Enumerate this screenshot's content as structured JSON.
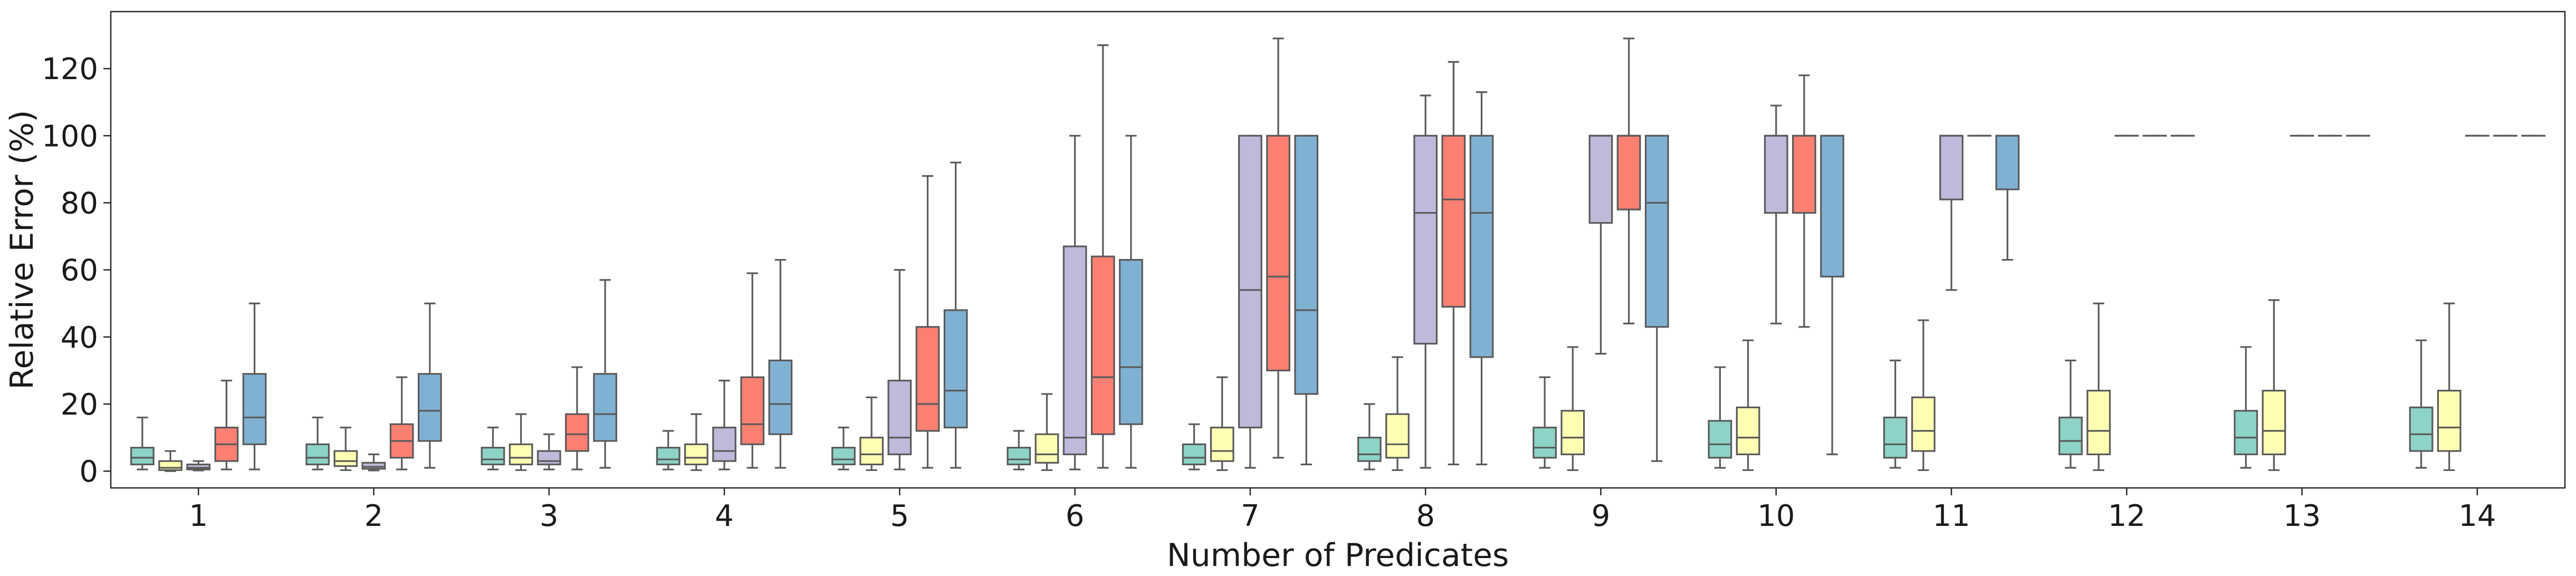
{
  "chart_data": {
    "type": "boxplot",
    "title": "",
    "xlabel": "Number of Predicates",
    "ylabel": "Relative Error (%)",
    "ylim": [
      -5,
      137
    ],
    "yticks": [
      0,
      20,
      40,
      60,
      80,
      100,
      120
    ],
    "grid": false,
    "legend": "none",
    "categories": [
      "1",
      "2",
      "3",
      "4",
      "5",
      "6",
      "7",
      "8",
      "9",
      "10",
      "11",
      "12",
      "13",
      "14"
    ],
    "colors": [
      "#8dd3c7",
      "#ffffb3",
      "#bebada",
      "#fb8072",
      "#80b1d3"
    ],
    "series": [
      {
        "color": "#8dd3c7",
        "boxes": [
          {
            "cat": "1",
            "whislo": 0.5,
            "q1": 2,
            "med": 4,
            "q3": 7,
            "whishi": 16
          },
          {
            "cat": "2",
            "whislo": 0.5,
            "q1": 2,
            "med": 4,
            "q3": 8,
            "whishi": 16
          },
          {
            "cat": "3",
            "whislo": 0.5,
            "q1": 2,
            "med": 3.5,
            "q3": 7,
            "whishi": 13
          },
          {
            "cat": "4",
            "whislo": 0.5,
            "q1": 2,
            "med": 3.5,
            "q3": 7,
            "whishi": 12
          },
          {
            "cat": "5",
            "whislo": 0.5,
            "q1": 2,
            "med": 3.5,
            "q3": 7,
            "whishi": 13
          },
          {
            "cat": "6",
            "whislo": 0.5,
            "q1": 2,
            "med": 3.5,
            "q3": 7,
            "whishi": 12
          },
          {
            "cat": "7",
            "whislo": 0.5,
            "q1": 2,
            "med": 4,
            "q3": 8,
            "whishi": 14
          },
          {
            "cat": "8",
            "whislo": 0.5,
            "q1": 3,
            "med": 5,
            "q3": 10,
            "whishi": 20
          },
          {
            "cat": "9",
            "whislo": 1,
            "q1": 4,
            "med": 7,
            "q3": 13,
            "whishi": 28
          },
          {
            "cat": "10",
            "whislo": 1,
            "q1": 4,
            "med": 8,
            "q3": 15,
            "whishi": 31
          },
          {
            "cat": "11",
            "whislo": 1,
            "q1": 4,
            "med": 8,
            "q3": 16,
            "whishi": 33
          },
          {
            "cat": "12",
            "whislo": 1,
            "q1": 5,
            "med": 9,
            "q3": 16,
            "whishi": 33
          },
          {
            "cat": "13",
            "whislo": 1,
            "q1": 5,
            "med": 10,
            "q3": 18,
            "whishi": 37
          },
          {
            "cat": "14",
            "whislo": 1,
            "q1": 6,
            "med": 11,
            "q3": 19,
            "whishi": 39
          }
        ]
      },
      {
        "color": "#ffffb3",
        "boxes": [
          {
            "cat": "1",
            "whislo": 0,
            "q1": 0.3,
            "med": 1,
            "q3": 3,
            "whishi": 6
          },
          {
            "cat": "2",
            "whislo": 0.3,
            "q1": 1.5,
            "med": 3,
            "q3": 6,
            "whishi": 13
          },
          {
            "cat": "3",
            "whislo": 0.3,
            "q1": 2,
            "med": 4,
            "q3": 8,
            "whishi": 17
          },
          {
            "cat": "4",
            "whislo": 0.3,
            "q1": 2,
            "med": 4,
            "q3": 8,
            "whishi": 17
          },
          {
            "cat": "5",
            "whislo": 0.3,
            "q1": 2,
            "med": 5,
            "q3": 10,
            "whishi": 22
          },
          {
            "cat": "6",
            "whislo": 0.3,
            "q1": 2.5,
            "med": 5,
            "q3": 11,
            "whishi": 23
          },
          {
            "cat": "7",
            "whislo": 0.3,
            "q1": 3,
            "med": 6,
            "q3": 13,
            "whishi": 28
          },
          {
            "cat": "8",
            "whislo": 0.3,
            "q1": 4,
            "med": 8,
            "q3": 17,
            "whishi": 34
          },
          {
            "cat": "9",
            "whislo": 0.3,
            "q1": 5,
            "med": 10,
            "q3": 18,
            "whishi": 37
          },
          {
            "cat": "10",
            "whislo": 0.3,
            "q1": 5,
            "med": 10,
            "q3": 19,
            "whishi": 39
          },
          {
            "cat": "11",
            "whislo": 0.3,
            "q1": 6,
            "med": 12,
            "q3": 22,
            "whishi": 45
          },
          {
            "cat": "12",
            "whislo": 0.3,
            "q1": 5,
            "med": 12,
            "q3": 24,
            "whishi": 50
          },
          {
            "cat": "13",
            "whislo": 0.3,
            "q1": 5,
            "med": 12,
            "q3": 24,
            "whishi": 51
          },
          {
            "cat": "14",
            "whislo": 0.3,
            "q1": 6,
            "med": 13,
            "q3": 24,
            "whishi": 50
          }
        ]
      },
      {
        "color": "#bebada",
        "boxes": [
          {
            "cat": "1",
            "whislo": 0.2,
            "q1": 0.5,
            "med": 1,
            "q3": 2,
            "whishi": 3
          },
          {
            "cat": "2",
            "whislo": 0.2,
            "q1": 0.7,
            "med": 1.3,
            "q3": 2.5,
            "whishi": 5
          },
          {
            "cat": "3",
            "whislo": 0.5,
            "q1": 2,
            "med": 3,
            "q3": 6,
            "whishi": 11
          },
          {
            "cat": "4",
            "whislo": 0.5,
            "q1": 3,
            "med": 6,
            "q3": 13,
            "whishi": 27
          },
          {
            "cat": "5",
            "whislo": 0.5,
            "q1": 5,
            "med": 10,
            "q3": 27,
            "whishi": 60
          },
          {
            "cat": "6",
            "whislo": 0.5,
            "q1": 5,
            "med": 10,
            "q3": 67,
            "whishi": 100
          },
          {
            "cat": "7",
            "whislo": 1,
            "q1": 13,
            "med": 54,
            "q3": 100,
            "whishi": 100
          },
          {
            "cat": "8",
            "whislo": 1,
            "q1": 38,
            "med": 77,
            "q3": 100,
            "whishi": 112
          },
          {
            "cat": "9",
            "whislo": 35,
            "q1": 74,
            "med": 100,
            "q3": 100,
            "whishi": 100
          },
          {
            "cat": "10",
            "whislo": 44,
            "q1": 77,
            "med": 100,
            "q3": 100,
            "whishi": 109
          },
          {
            "cat": "11",
            "whislo": 54,
            "q1": 81,
            "med": 100,
            "q3": 100,
            "whishi": 100
          },
          {
            "cat": "12",
            "whislo": 100,
            "q1": 100,
            "med": 100,
            "q3": 100,
            "whishi": 100
          },
          {
            "cat": "13",
            "whislo": 100,
            "q1": 100,
            "med": 100,
            "q3": 100,
            "whishi": 100
          },
          {
            "cat": "14",
            "whislo": 100,
            "q1": 100,
            "med": 100,
            "q3": 100,
            "whishi": 100
          }
        ]
      },
      {
        "color": "#fb8072",
        "boxes": [
          {
            "cat": "1",
            "whislo": 0.5,
            "q1": 3,
            "med": 8,
            "q3": 13,
            "whishi": 27
          },
          {
            "cat": "2",
            "whislo": 0.5,
            "q1": 4,
            "med": 9,
            "q3": 14,
            "whishi": 28
          },
          {
            "cat": "3",
            "whislo": 0.5,
            "q1": 6,
            "med": 11,
            "q3": 17,
            "whishi": 31
          },
          {
            "cat": "4",
            "whislo": 1,
            "q1": 8,
            "med": 14,
            "q3": 28,
            "whishi": 59
          },
          {
            "cat": "5",
            "whislo": 1,
            "q1": 12,
            "med": 20,
            "q3": 43,
            "whishi": 88
          },
          {
            "cat": "6",
            "whislo": 1,
            "q1": 11,
            "med": 28,
            "q3": 64,
            "whishi": 127
          },
          {
            "cat": "7",
            "whislo": 4,
            "q1": 30,
            "med": 58,
            "q3": 100,
            "whishi": 129
          },
          {
            "cat": "8",
            "whislo": 2,
            "q1": 49,
            "med": 81,
            "q3": 100,
            "whishi": 122
          },
          {
            "cat": "9",
            "whislo": 44,
            "q1": 78,
            "med": 100,
            "q3": 100,
            "whishi": 129
          },
          {
            "cat": "10",
            "whislo": 43,
            "q1": 77,
            "med": 100,
            "q3": 100,
            "whishi": 118
          },
          {
            "cat": "11",
            "whislo": 100,
            "q1": 100,
            "med": 100,
            "q3": 100,
            "whishi": 100
          },
          {
            "cat": "12",
            "whislo": 100,
            "q1": 100,
            "med": 100,
            "q3": 100,
            "whishi": 100
          },
          {
            "cat": "13",
            "whislo": 100,
            "q1": 100,
            "med": 100,
            "q3": 100,
            "whishi": 100
          },
          {
            "cat": "14",
            "whislo": 100,
            "q1": 100,
            "med": 100,
            "q3": 100,
            "whishi": 100
          }
        ]
      },
      {
        "color": "#80b1d3",
        "boxes": [
          {
            "cat": "1",
            "whislo": 0.5,
            "q1": 8,
            "med": 16,
            "q3": 29,
            "whishi": 50
          },
          {
            "cat": "2",
            "whislo": 1,
            "q1": 9,
            "med": 18,
            "q3": 29,
            "whishi": 50
          },
          {
            "cat": "3",
            "whislo": 1,
            "q1": 9,
            "med": 17,
            "q3": 29,
            "whishi": 57
          },
          {
            "cat": "4",
            "whislo": 1,
            "q1": 11,
            "med": 20,
            "q3": 33,
            "whishi": 63
          },
          {
            "cat": "5",
            "whislo": 1,
            "q1": 13,
            "med": 24,
            "q3": 48,
            "whishi": 92
          },
          {
            "cat": "6",
            "whislo": 1,
            "q1": 14,
            "med": 31,
            "q3": 63,
            "whishi": 100
          },
          {
            "cat": "7",
            "whislo": 2,
            "q1": 23,
            "med": 48,
            "q3": 100,
            "whishi": 100
          },
          {
            "cat": "8",
            "whislo": 2,
            "q1": 34,
            "med": 77,
            "q3": 100,
            "whishi": 113
          },
          {
            "cat": "9",
            "whislo": 3,
            "q1": 43,
            "med": 80,
            "q3": 100,
            "whishi": 100
          },
          {
            "cat": "10",
            "whislo": 5,
            "q1": 58,
            "med": 100,
            "q3": 100,
            "whishi": 100
          },
          {
            "cat": "11",
            "whislo": 63,
            "q1": 84,
            "med": 100,
            "q3": 100,
            "whishi": 100
          },
          {
            "cat": "12",
            "whislo": 100,
            "q1": 100,
            "med": 100,
            "q3": 100,
            "whishi": 100
          },
          {
            "cat": "13",
            "whislo": 100,
            "q1": 100,
            "med": 100,
            "q3": 100,
            "whishi": 100
          },
          {
            "cat": "14",
            "whislo": 100,
            "q1": 100,
            "med": 100,
            "q3": 100,
            "whishi": 100
          }
        ]
      }
    ]
  }
}
